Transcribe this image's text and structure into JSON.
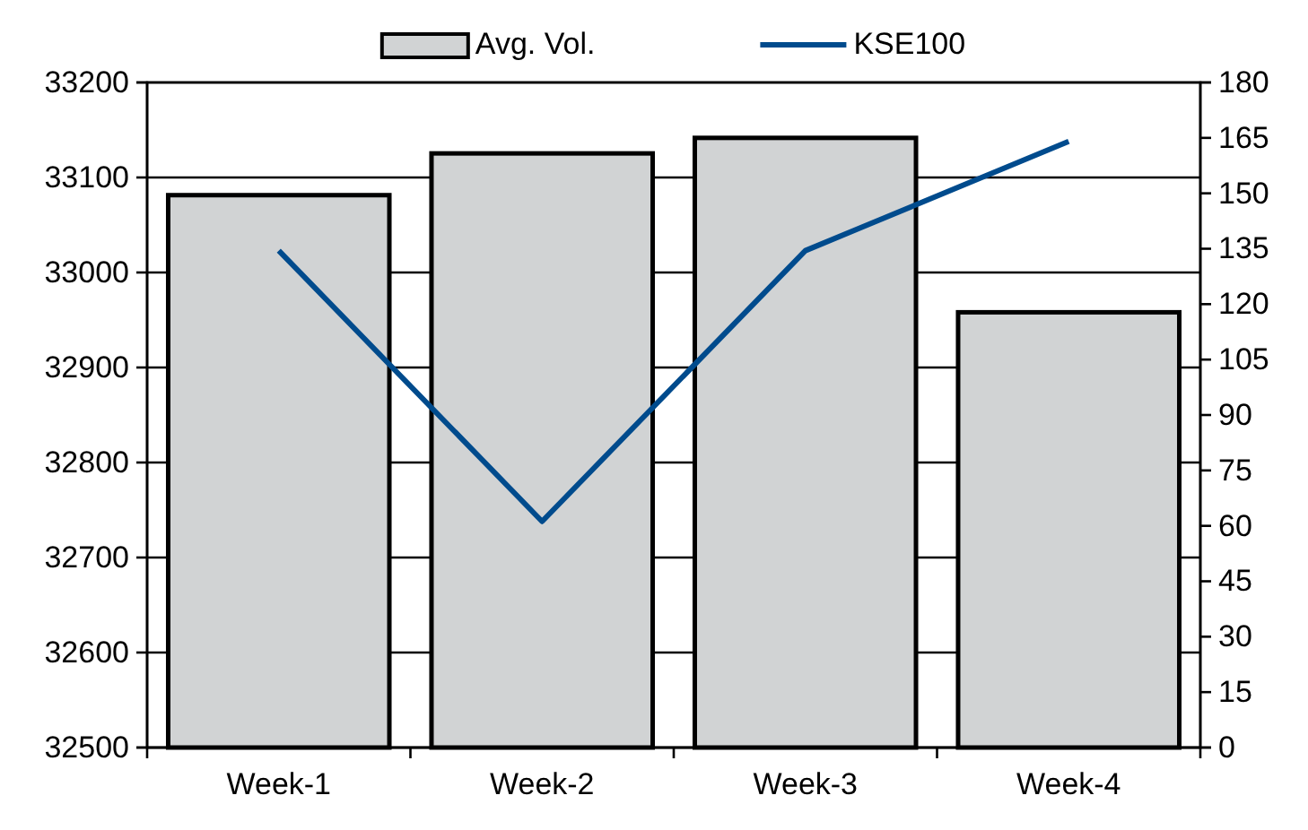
{
  "chart_data": {
    "type": "bar",
    "categories": [
      "Week-1",
      "Week-2",
      "Week-3",
      "Week-4"
    ],
    "series": [
      {
        "name": "Avg. Vol.",
        "axis": "y2",
        "color": "#d1d3d4",
        "values": [
          149.5,
          160.8,
          165,
          117.8
        ]
      },
      {
        "name": "KSE100",
        "type": "line",
        "axis": "y",
        "color": "#004b8d",
        "values": [
          33023,
          32738,
          33023,
          33138
        ]
      }
    ],
    "ylim": [
      32500,
      33200
    ],
    "yticks": [
      32500,
      32600,
      32700,
      32800,
      32900,
      33000,
      33100,
      33200
    ],
    "y2lim": [
      0,
      180
    ],
    "y2ticks": [
      0,
      15,
      30,
      45,
      60,
      75,
      90,
      105,
      120,
      135,
      150,
      165,
      180
    ],
    "grid": "y",
    "legend": "top",
    "marker": "none",
    "line_style": "solid"
  }
}
